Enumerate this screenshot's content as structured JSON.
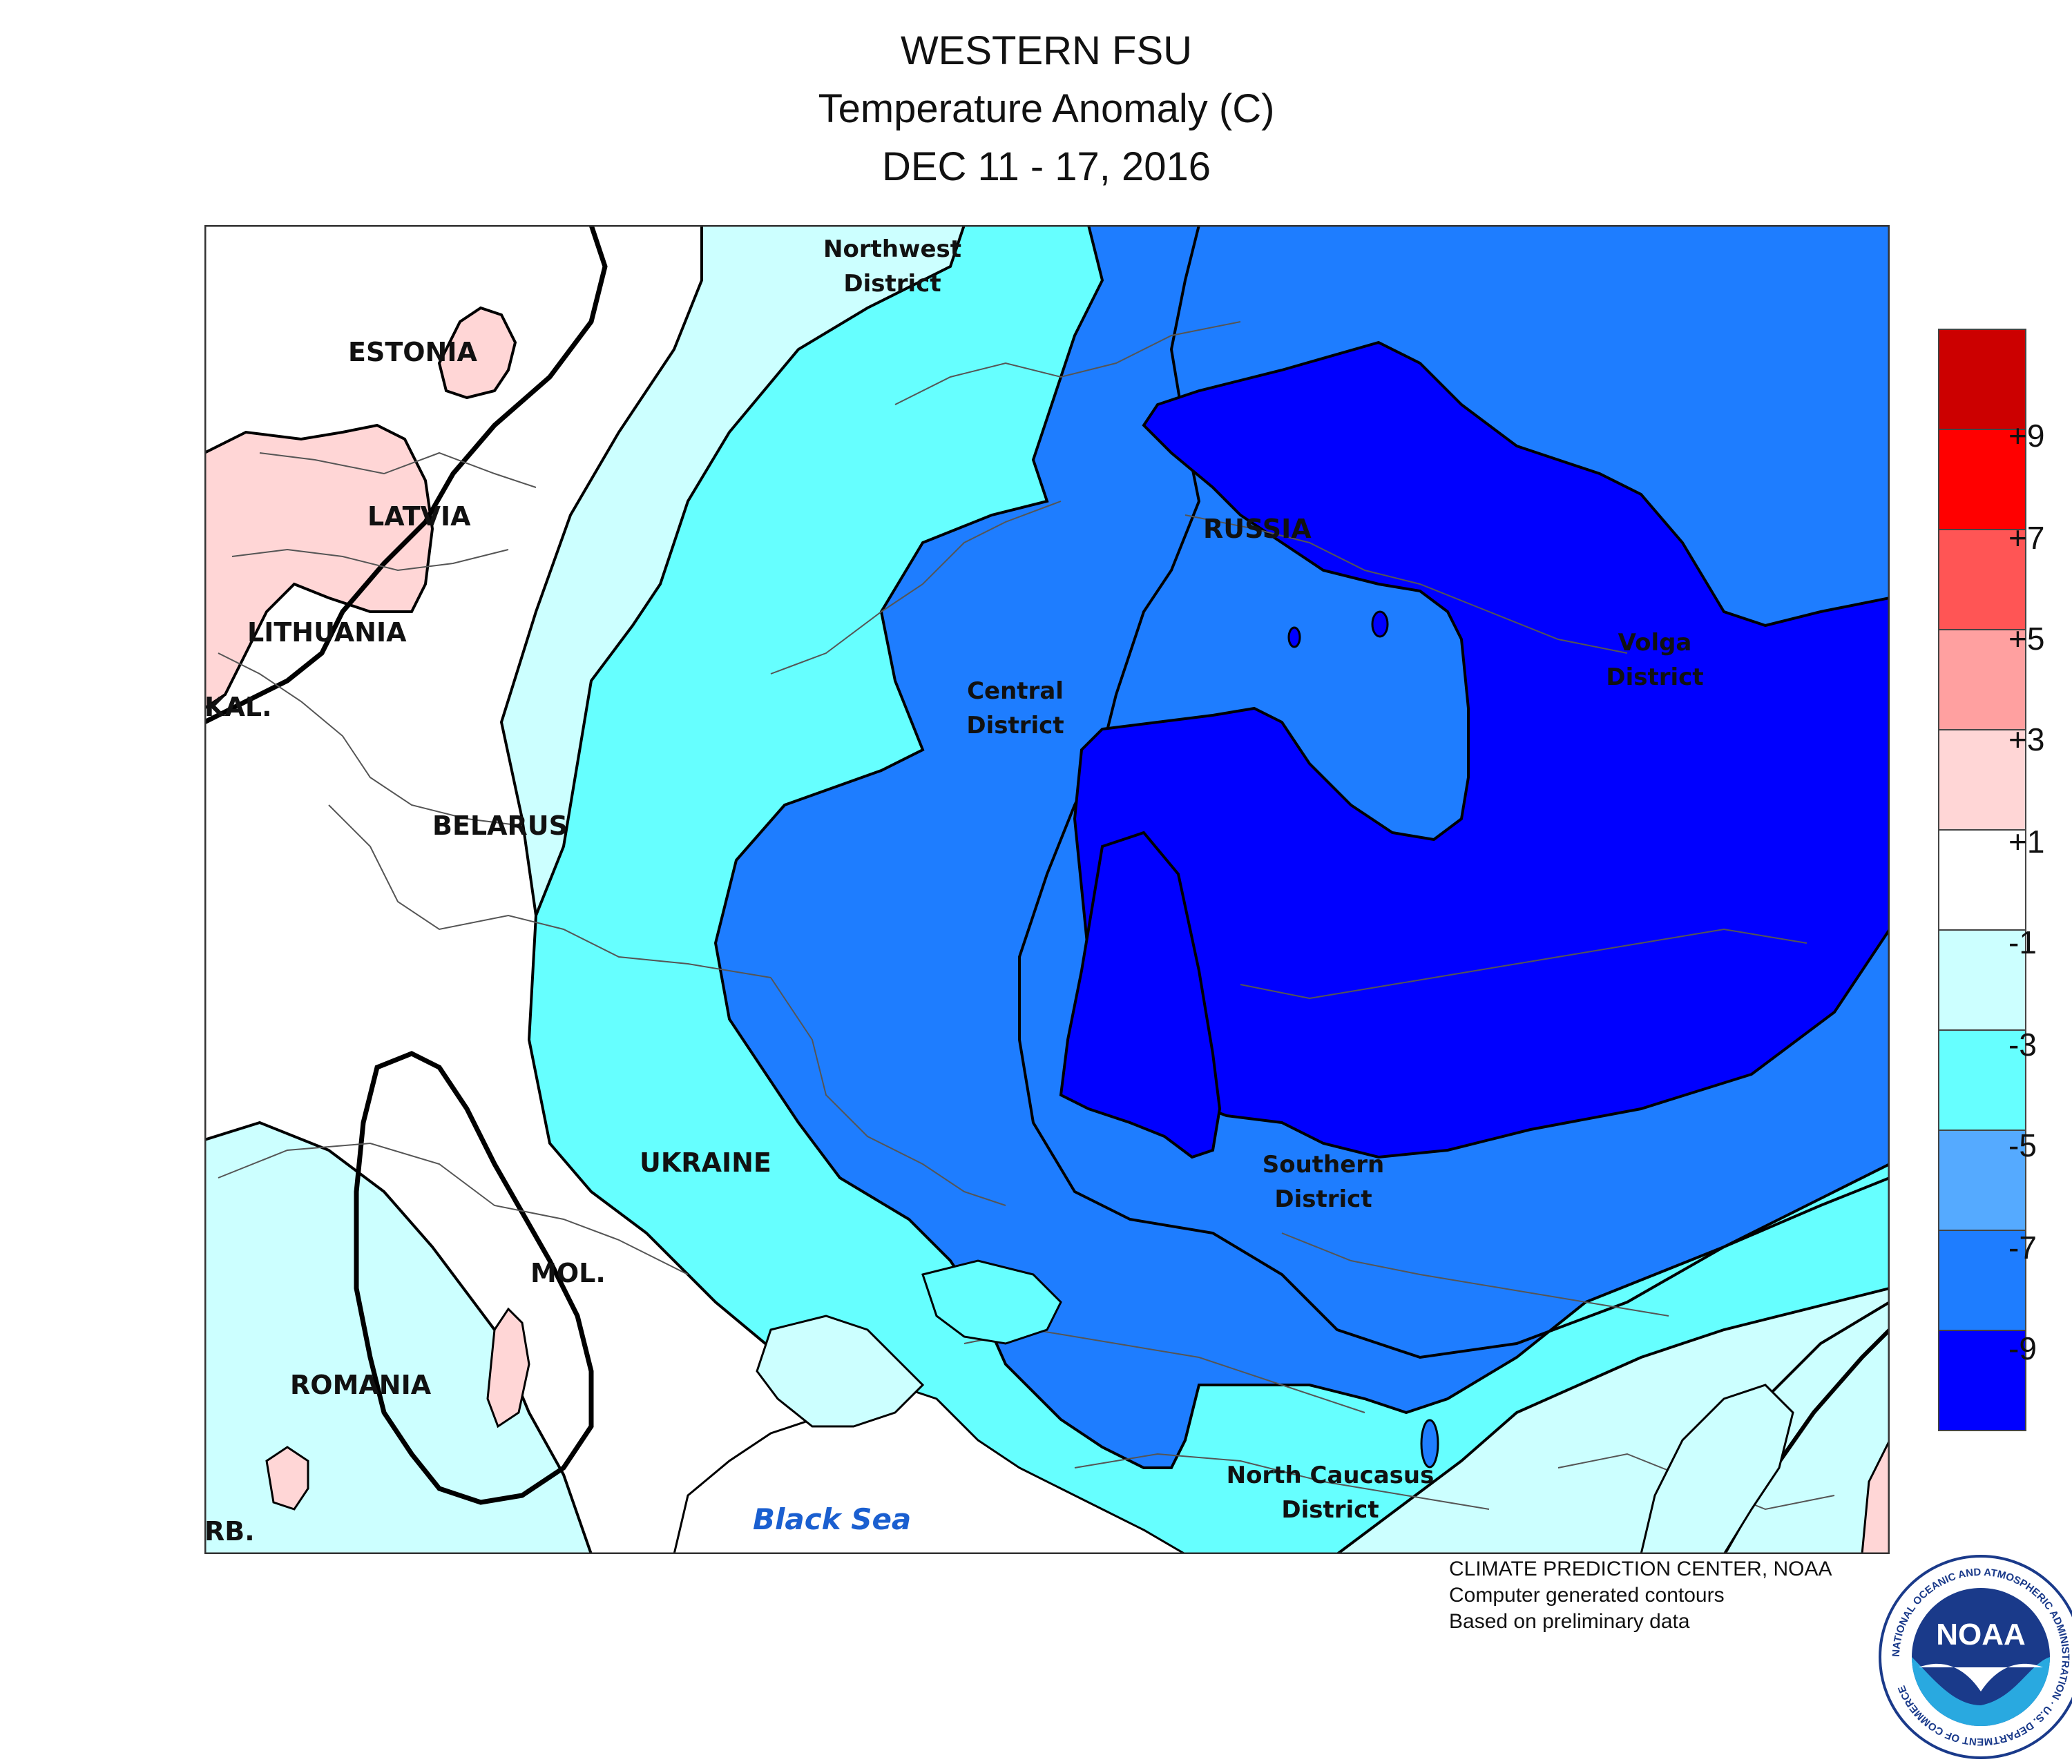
{
  "title": {
    "line1": "WESTERN FSU",
    "line2": "Temperature Anomaly (C)",
    "line3": "DEC 11 - 17, 2016"
  },
  "map_labels": {
    "countries": {
      "estonia": "ESTONIA",
      "latvia": "LATVIA",
      "lithuania": "LITHUANIA",
      "kaliningrad": "KAL.",
      "belarus": "BELARUS",
      "ukraine": "UKRAINE",
      "moldova": "MOL.",
      "romania": "ROMANIA",
      "serbia": "RB.",
      "russia": "RUSSIA"
    },
    "districts": {
      "northwest": [
        "Northwest",
        "District"
      ],
      "central": [
        "Central",
        "District"
      ],
      "volga": [
        "Volga",
        "District"
      ],
      "southern": [
        "Southern",
        "District"
      ],
      "north_caucasus": [
        "North Caucasus",
        "District"
      ]
    },
    "sea": "Black Sea"
  },
  "legend": {
    "labels": [
      "+9",
      "+7",
      "+5",
      "+3",
      "+1",
      "-1",
      "-3",
      "-5",
      "-7",
      "-9"
    ],
    "colors": [
      "#cc0000",
      "#ff0000",
      "#ff5555",
      "#ffa0a0",
      "#ffd6d6",
      "#ffffff",
      "#ccffff",
      "#66ffff",
      "#55aaff",
      "#1e7dff",
      "#0000ff"
    ]
  },
  "anomaly_colors": {
    "warm_1_3": "#ffd6d6",
    "neutral": "#ffffff",
    "cool_m1_m3": "#ccffff",
    "cool_m3_m5": "#66ffff",
    "cool_m7_m9": "#1e7dff",
    "cool_below_m9": "#0000ff"
  },
  "credit": {
    "line1": "CLIMATE PREDICTION CENTER, NOAA",
    "line2": "Computer generated contours",
    "line3": "Based on preliminary data"
  },
  "logo": {
    "text": "NOAA",
    "ring_text": "NATIONAL OCEANIC AND ATMOSPHERIC ADMINISTRATION · U.S. DEPARTMENT OF COMMERCE"
  }
}
